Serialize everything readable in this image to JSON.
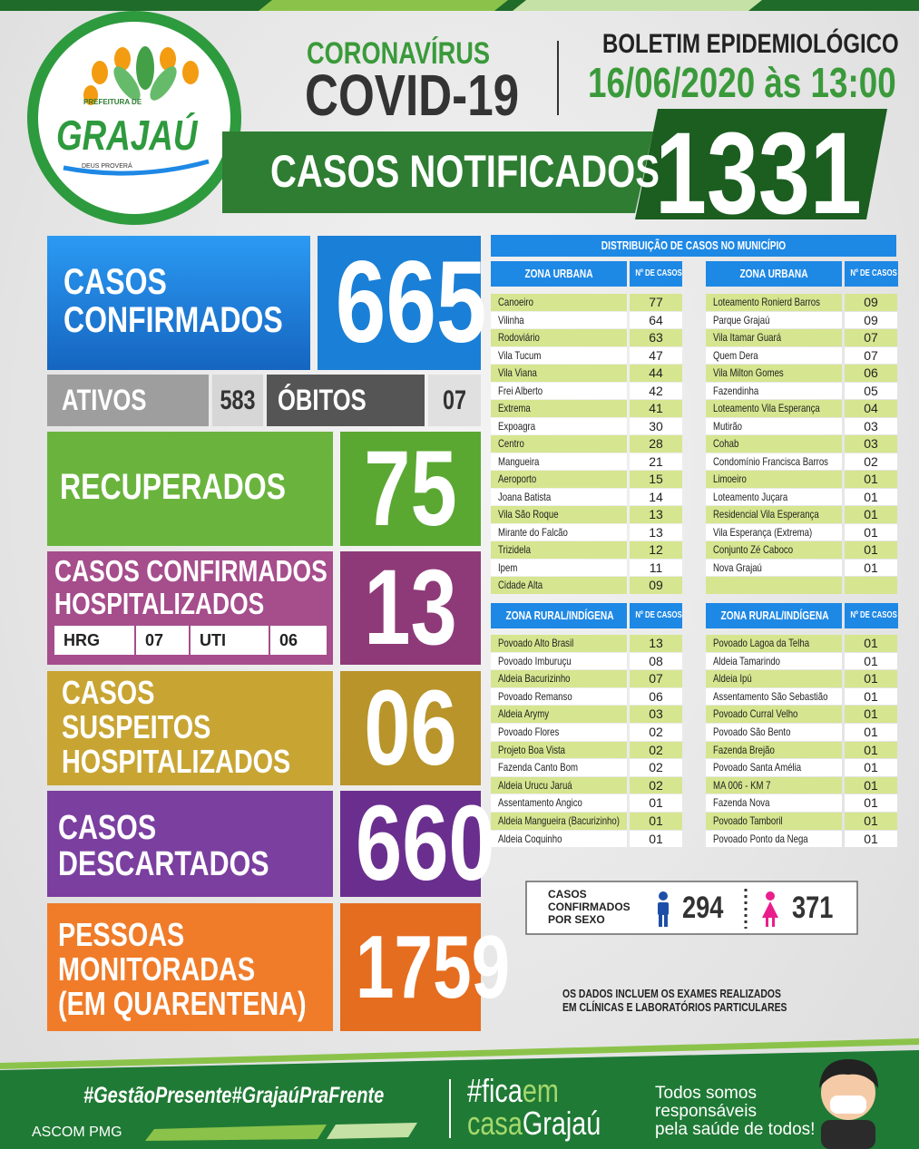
{
  "header": {
    "logo": {
      "top": "PREFEITURA DE",
      "name": "GRAJAÚ",
      "motto": "DEUS PROVERÁ"
    },
    "kicker": "CORONAVÍRUS",
    "title": "COVID-19",
    "bulletin": "BOLETIM EPIDEMIOLÓGICO",
    "datetime": "16/06/2020 às 13:00",
    "notified_label": "CASOS NOTIFICADOS",
    "notified_value": "1331"
  },
  "panels": {
    "confirmed": {
      "label": [
        "CASOS",
        "CONFIRMADOS"
      ],
      "value": "665"
    },
    "active": {
      "label": "ATIVOS",
      "value": "583"
    },
    "deaths": {
      "label": "ÓBITOS",
      "value": "07"
    },
    "recovered": {
      "label": [
        "RECUPERADOS"
      ],
      "value": "75"
    },
    "hospitalized": {
      "label": [
        "CASOS CONFIRMADOS",
        "HOSPITALIZADOS"
      ],
      "value": "13",
      "breakdown": [
        [
          "HRG",
          "07"
        ],
        [
          "UTI",
          "06"
        ]
      ]
    },
    "suspected": {
      "label": [
        "CASOS",
        "SUSPEITOS",
        "HOSPITALIZADOS"
      ],
      "value": "06"
    },
    "discarded": {
      "label": [
        "CASOS",
        "DESCARTADOS"
      ],
      "value": "660"
    },
    "monitored": {
      "label": [
        "PESSOAS",
        "MONITORADAS",
        "(EM QUARENTENA)"
      ],
      "value": "1759"
    }
  },
  "distribution": {
    "title": "DISTRIBUIÇÃO DE CASOS NO MUNICÍPIO",
    "tables": [
      {
        "header": [
          "ZONA URBANA",
          "Nº DE CASOS"
        ],
        "rows": [
          [
            "Canoeiro",
            "77"
          ],
          [
            "Vilinha",
            "64"
          ],
          [
            "Rodoviário",
            "63"
          ],
          [
            "Vila Tucum",
            "47"
          ],
          [
            "Vila Viana",
            "44"
          ],
          [
            "Frei Alberto",
            "42"
          ],
          [
            "Extrema",
            "41"
          ],
          [
            "Expoagra",
            "30"
          ],
          [
            "Centro",
            "28"
          ],
          [
            "Mangueira",
            "21"
          ],
          [
            "Aeroporto",
            "15"
          ],
          [
            "Joana Batista",
            "14"
          ],
          [
            "Vila São Roque",
            "13"
          ],
          [
            "Mirante do Falcão",
            "13"
          ],
          [
            "Trizidela",
            "12"
          ],
          [
            "Ipem",
            "11"
          ],
          [
            "Cidade Alta",
            "09"
          ]
        ]
      },
      {
        "header": [
          "ZONA URBANA",
          "Nº DE CASOS"
        ],
        "rows": [
          [
            "Loteamento Ronierd Barros",
            "09"
          ],
          [
            "Parque Grajaú",
            "09"
          ],
          [
            "Vila Itamar Guará",
            "07"
          ],
          [
            "Quem Dera",
            "07"
          ],
          [
            "Vila Milton Gomes",
            "06"
          ],
          [
            "Fazendinha",
            "05"
          ],
          [
            "Loteamento Vila Esperança",
            "04"
          ],
          [
            "Mutirão",
            "03"
          ],
          [
            "Cohab",
            "03"
          ],
          [
            "Condomínio Francisca Barros",
            "02"
          ],
          [
            "Limoeiro",
            "01"
          ],
          [
            "Loteamento Juçara",
            "01"
          ],
          [
            "Residencial Vila Esperança",
            "01"
          ],
          [
            "Vila Esperança (Extrema)",
            "01"
          ],
          [
            "Conjunto Zé Caboco",
            "01"
          ],
          [
            "Nova Grajaú",
            "01"
          ]
        ]
      },
      {
        "header": [
          "ZONA RURAL/INDÍGENA",
          "Nº DE CASOS"
        ],
        "rows": [
          [
            "Povoado Alto Brasil",
            "13"
          ],
          [
            "Povoado Imburuçu",
            "08"
          ],
          [
            "Aldeia Bacurizinho",
            "07"
          ],
          [
            "Povoado Remanso",
            "06"
          ],
          [
            "Aldeia Arymy",
            "03"
          ],
          [
            "Povoado Flores",
            "02"
          ],
          [
            "Projeto Boa Vista",
            "02"
          ],
          [
            "Fazenda Canto Bom",
            "02"
          ],
          [
            "Aldeia Urucu Jaruá",
            "02"
          ],
          [
            "Assentamento Angico",
            "01"
          ],
          [
            "Aldeia Mangueira (Bacurizinho)",
            "01"
          ],
          [
            "Aldeia Coquinho",
            "01"
          ]
        ]
      },
      {
        "header": [
          "ZONA RURAL/INDÍGENA",
          "Nº DE CASOS"
        ],
        "rows": [
          [
            "Povoado Lagoa da Telha",
            "01"
          ],
          [
            "Aldeia Tamarindo",
            "01"
          ],
          [
            "Aldeia Ipú",
            "01"
          ],
          [
            "Assentamento São Sebastião",
            "01"
          ],
          [
            "Povoado Curral Velho",
            "01"
          ],
          [
            "Povoado São Bento",
            "01"
          ],
          [
            "Fazenda Brejão",
            "01"
          ],
          [
            "Povoado Santa Amélia",
            "01"
          ],
          [
            "MA 006 - KM 7",
            "01"
          ],
          [
            "Fazenda Nova",
            "01"
          ],
          [
            "Povoado Tamboril",
            "01"
          ],
          [
            "Povoado Ponto da Nega",
            "01"
          ]
        ]
      }
    ]
  },
  "sex": {
    "label": [
      "CASOS",
      "CONFIRMADOS",
      "POR SEXO"
    ],
    "male": "294",
    "female": "371"
  },
  "note": [
    "OS DADOS INCLUEM OS EXAMES REALIZADOS",
    "EM CLÍNICAS E LABORATÓRIOS PARTICULARES"
  ],
  "footer": {
    "hashtags": "#GestãoPresente#GrajaúPraFrente",
    "campaign": [
      [
        "#fica",
        "em"
      ],
      [
        "casa",
        "Grajaú"
      ]
    ],
    "slogan": [
      "Todos somos",
      "responsáveis",
      "pela saúde de todos!"
    ],
    "credit": "ASCOM PMG"
  }
}
